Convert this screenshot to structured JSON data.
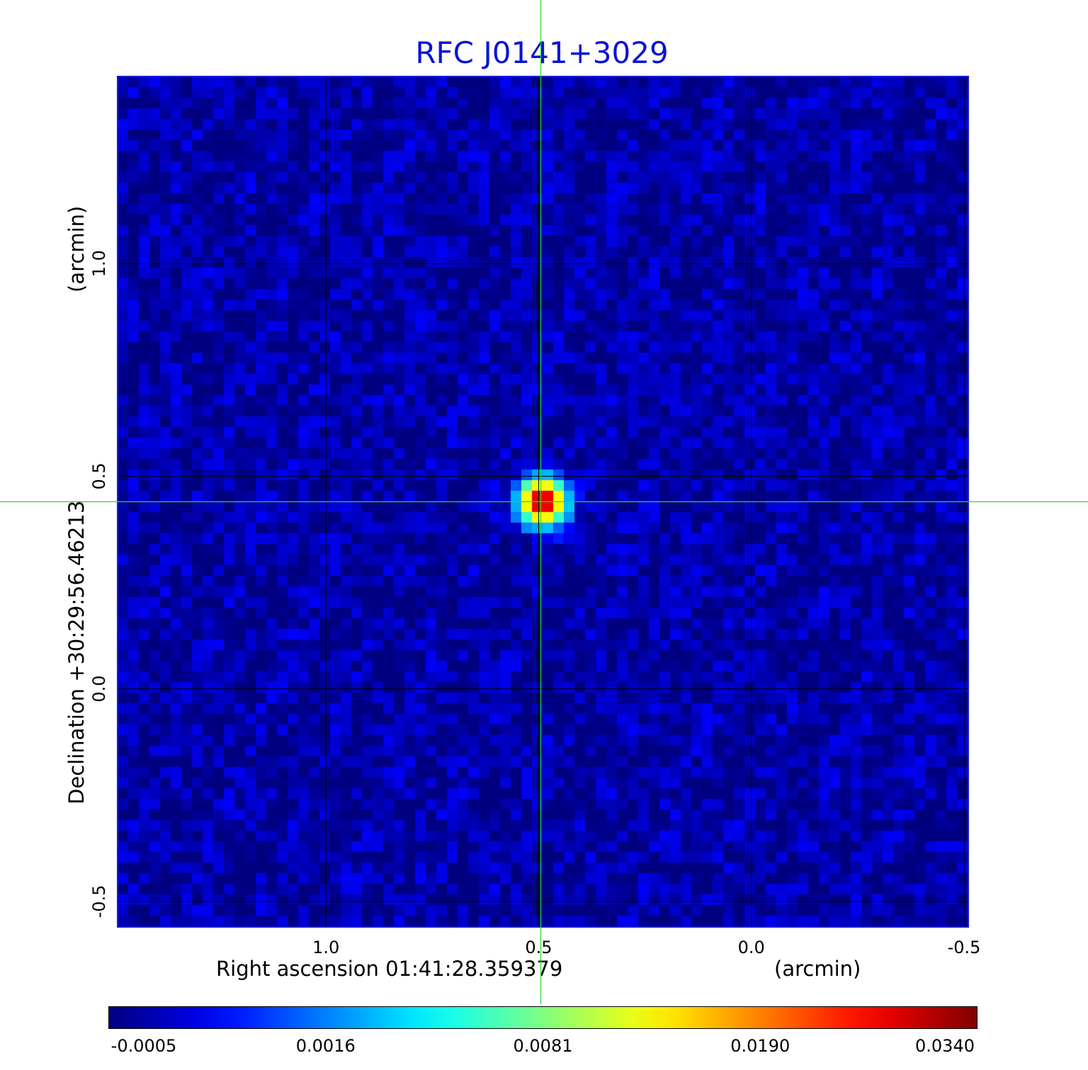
{
  "title": "RFC J0141+3029",
  "chart_data": {
    "type": "heatmap",
    "title": "RFC J0141+3029",
    "xlabel": "Right ascension  01:41:28.359379",
    "xunit": "(arcmin)",
    "ylabel": "Declination  +30:29:56.46213",
    "yunit": "(arcmin)",
    "x_range": [
      1.49,
      -0.51
    ],
    "y_range": [
      -0.56,
      1.44
    ],
    "x_ticks": [
      {
        "value": 1.0,
        "label": "1.0"
      },
      {
        "value": 0.5,
        "label": "0.5"
      },
      {
        "value": 0.0,
        "label": "0.0"
      },
      {
        "value": -0.5,
        "label": "-0.5"
      }
    ],
    "y_ticks": [
      {
        "value": 1.0,
        "label": "1.0"
      },
      {
        "value": 0.5,
        "label": "0.5"
      },
      {
        "value": 0.0,
        "label": "0.0"
      },
      {
        "value": -0.5,
        "label": "-0.5"
      }
    ],
    "grid": true,
    "colormap": "jet",
    "colorbar_ticks": [
      "-0.0005",
      "0.0016",
      "0.0081",
      "0.0190",
      "0.0340"
    ],
    "colorbar_range": [
      -0.0005,
      0.034
    ],
    "peak": {
      "x": 0.49,
      "y": 0.44,
      "value": 0.034
    },
    "crosshair": {
      "x": 0.495,
      "y": 0.44,
      "color": "#22dd22"
    },
    "background_level": -0.0002
  }
}
